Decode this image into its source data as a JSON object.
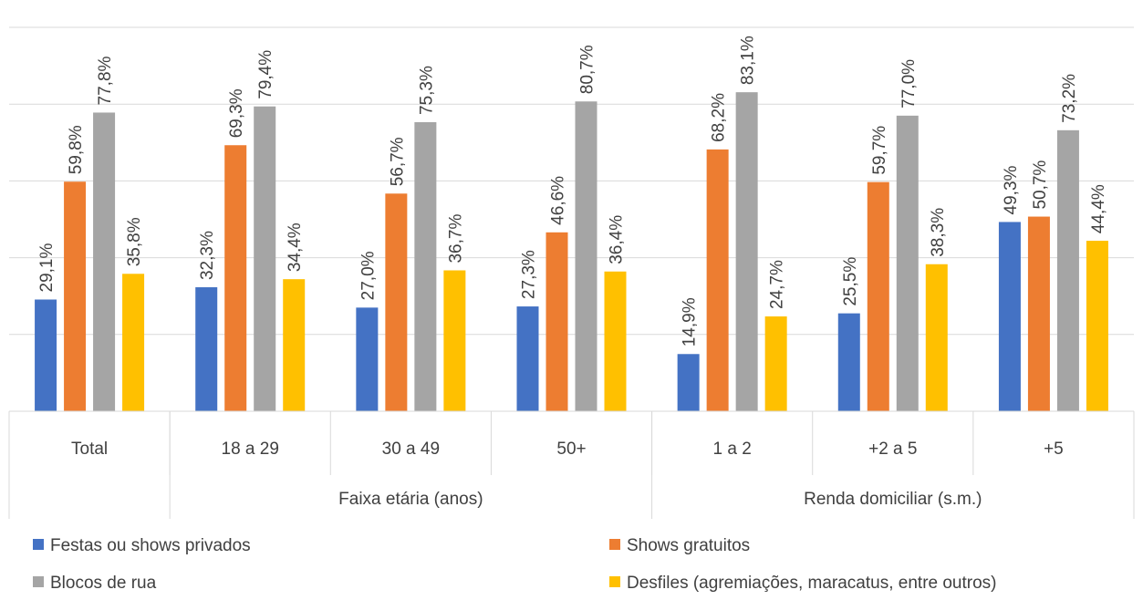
{
  "chart_data": {
    "type": "bar",
    "categories": [
      "Total",
      "18 a 29",
      "30 a 49",
      "50+",
      "1 a 2",
      "+2 a 5",
      "+5"
    ],
    "groups": [
      {
        "label": "",
        "categories": [
          "Total"
        ]
      },
      {
        "label": "Faixa etária (anos)",
        "categories": [
          "18 a 29",
          "30 a 49",
          "50+"
        ]
      },
      {
        "label": "Renda domiciliar (s.m.)",
        "categories": [
          "1 a 2",
          "+2 a 5",
          "+5"
        ]
      }
    ],
    "series": [
      {
        "name": "Festas ou shows privados",
        "color": "#4472C4",
        "values": [
          29.1,
          32.3,
          27.0,
          27.3,
          14.9,
          25.5,
          49.3
        ],
        "labels": [
          "29,1%",
          "32,3%",
          "27,0%",
          "27,3%",
          "14,9%",
          "25,5%",
          "49,3%"
        ]
      },
      {
        "name": "Shows gratuitos",
        "color": "#ED7D31",
        "values": [
          59.8,
          69.3,
          56.7,
          46.6,
          68.2,
          59.7,
          50.7
        ],
        "labels": [
          "59,8%",
          "69,3%",
          "56,7%",
          "46,6%",
          "68,2%",
          "59,7%",
          "50,7%"
        ]
      },
      {
        "name": "Blocos de rua",
        "color": "#A5A5A5",
        "values": [
          77.8,
          79.4,
          75.3,
          80.7,
          83.1,
          77.0,
          73.2
        ],
        "labels": [
          "77,8%",
          "79,4%",
          "75,3%",
          "80,7%",
          "83,1%",
          "77,0%",
          "73,2%"
        ]
      },
      {
        "name": "Desfiles (agremiações, maracatus, entre outros)",
        "color": "#FFC000",
        "values": [
          35.8,
          34.4,
          36.7,
          36.4,
          24.7,
          38.3,
          44.4
        ],
        "labels": [
          "35,8%",
          "34,4%",
          "36,7%",
          "36,4%",
          "24,7%",
          "38,3%",
          "44,4%"
        ]
      }
    ],
    "ylim": [
      0,
      100
    ],
    "gridlines": [
      0,
      20,
      40,
      60,
      80,
      100
    ],
    "grid": true,
    "legend_position": "bottom"
  }
}
